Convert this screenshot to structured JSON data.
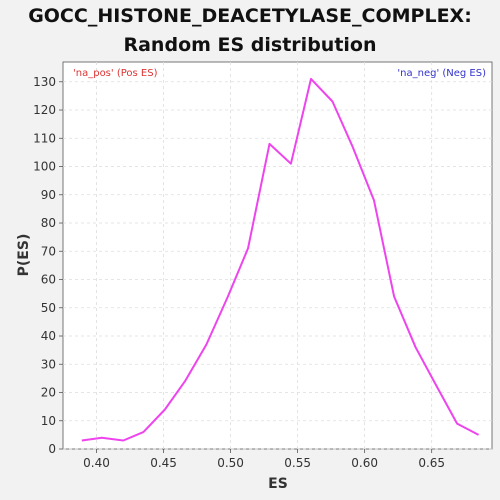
{
  "title_line1": "GOCC_HISTONE_DEACETYLASE_COMPLEX:",
  "title_line2": "Random ES distribution",
  "chart_data": {
    "type": "line",
    "xlabel": "ES",
    "ylabel": "P(ES)",
    "xlim": [
      0.375,
      0.695
    ],
    "ylim": [
      0,
      137
    ],
    "xticks": [
      0.4,
      0.45,
      0.5,
      0.55,
      0.6,
      0.65
    ],
    "xtick_labels": [
      "0.40",
      "0.45",
      "0.50",
      "0.55",
      "0.60",
      "0.65"
    ],
    "yticks": [
      0,
      10,
      20,
      30,
      40,
      50,
      60,
      70,
      80,
      90,
      100,
      110,
      120,
      130
    ],
    "grid": true,
    "annotations": {
      "left": "'na_pos' (Pos ES)",
      "right": "'na_neg' (Neg ES)"
    },
    "colors": {
      "line": "#ee44ee",
      "left_note": "#dd3333",
      "right_note": "#3333cc",
      "grid": "#dddddd"
    },
    "series": [
      {
        "x": [
          0.389,
          0.404,
          0.42,
          0.435,
          0.451,
          0.466,
          0.482,
          0.498,
          0.513,
          0.529,
          0.545,
          0.56,
          0.576,
          0.591,
          0.607,
          0.622,
          0.638,
          0.654,
          0.669,
          0.685
        ],
        "values": [
          3,
          4,
          3,
          6,
          14,
          24,
          37,
          54,
          71,
          108,
          101,
          131,
          123,
          107,
          88,
          54,
          36,
          22,
          9,
          5
        ]
      }
    ]
  }
}
